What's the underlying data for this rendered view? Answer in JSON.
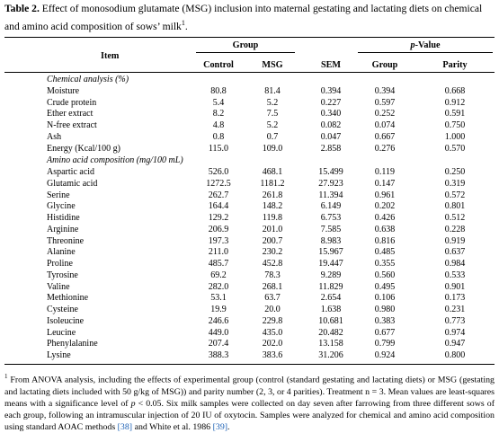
{
  "caption": {
    "label": "Table 2.",
    "text": " Effect of monosodium glutamate (MSG) inclusion into maternal gestating and lactating diets on chemical and amino acid composition of sows’ milk",
    "sup": "1",
    "end": "."
  },
  "header": {
    "item": "Item",
    "group": "Group",
    "pvalue": "p-Value",
    "control": "Control",
    "msg": "MSG",
    "sem": "SEM",
    "group_col": "Group",
    "parity": "Parity"
  },
  "sections": {
    "chemical": "Chemical analysis (%)",
    "amino": "Amino acid composition (mg/100 mL)"
  },
  "rows": [
    {
      "item": "Moisture",
      "control": "80.8",
      "msg": "81.4",
      "sem": "0.394",
      "group": "0.394",
      "parity": "0.668"
    },
    {
      "item": "Crude protein",
      "control": "5.4",
      "msg": "5.2",
      "sem": "0.227",
      "group": "0.597",
      "parity": "0.912"
    },
    {
      "item": "Ether extract",
      "control": "8.2",
      "msg": "7.5",
      "sem": "0.340",
      "group": "0.252",
      "parity": "0.591"
    },
    {
      "item": "N-free extract",
      "control": "4.8",
      "msg": "5.2",
      "sem": "0.082",
      "group": "0.074",
      "parity": "0.750"
    },
    {
      "item": "Ash",
      "control": "0.8",
      "msg": "0.7",
      "sem": "0.047",
      "group": "0.667",
      "parity": "1.000"
    },
    {
      "item": "Energy (Kcal/100 g)",
      "control": "115.0",
      "msg": "109.0",
      "sem": "2.858",
      "group": "0.276",
      "parity": "0.570"
    },
    {
      "item": "Aspartic acid",
      "control": "526.0",
      "msg": "468.1",
      "sem": "15.499",
      "group": "0.119",
      "parity": "0.250"
    },
    {
      "item": "Glutamic acid",
      "control": "1272.5",
      "msg": "1181.2",
      "sem": "27.923",
      "group": "0.147",
      "parity": "0.319"
    },
    {
      "item": "Serine",
      "control": "262.7",
      "msg": "261.8",
      "sem": "11.394",
      "group": "0.961",
      "parity": "0.572"
    },
    {
      "item": "Glycine",
      "control": "164.4",
      "msg": "148.2",
      "sem": "6.149",
      "group": "0.202",
      "parity": "0.801"
    },
    {
      "item": "Histidine",
      "control": "129.2",
      "msg": "119.8",
      "sem": "6.753",
      "group": "0.426",
      "parity": "0.512"
    },
    {
      "item": "Arginine",
      "control": "206.9",
      "msg": "201.0",
      "sem": "7.585",
      "group": "0.638",
      "parity": "0.228"
    },
    {
      "item": "Threonine",
      "control": "197.3",
      "msg": "200.7",
      "sem": "8.983",
      "group": "0.816",
      "parity": "0.919"
    },
    {
      "item": "Alanine",
      "control": "211.0",
      "msg": "230.2",
      "sem": "15.967",
      "group": "0.485",
      "parity": "0.637"
    },
    {
      "item": "Proline",
      "control": "485.7",
      "msg": "452.8",
      "sem": "19.447",
      "group": "0.355",
      "parity": "0.984"
    },
    {
      "item": "Tyrosine",
      "control": "69.2",
      "msg": "78.3",
      "sem": "9.289",
      "group": "0.560",
      "parity": "0.533"
    },
    {
      "item": "Valine",
      "control": "282.0",
      "msg": "268.1",
      "sem": "11.829",
      "group": "0.495",
      "parity": "0.901"
    },
    {
      "item": "Methionine",
      "control": "53.1",
      "msg": "63.7",
      "sem": "2.654",
      "group": "0.106",
      "parity": "0.173"
    },
    {
      "item": "Cysteine",
      "control": "19.9",
      "msg": "20.0",
      "sem": "1.638",
      "group": "0.980",
      "parity": "0.231"
    },
    {
      "item": "Isoleucine",
      "control": "246.6",
      "msg": "229.8",
      "sem": "10.681",
      "group": "0.383",
      "parity": "0.773"
    },
    {
      "item": "Leucine",
      "control": "449.0",
      "msg": "435.0",
      "sem": "20.482",
      "group": "0.677",
      "parity": "0.974"
    },
    {
      "item": "Phenylalanine",
      "control": "207.4",
      "msg": "202.0",
      "sem": "13.158",
      "group": "0.799",
      "parity": "0.947"
    },
    {
      "item": "Lysine",
      "control": "388.3",
      "msg": "383.6",
      "sem": "31.206",
      "group": "0.924",
      "parity": "0.800"
    }
  ],
  "footnote": {
    "sup": "1",
    "part1": " From ANOVA analysis, including the effects of experimental group (control (standard gestating and lactating diets) or MSG (gestating and lactating diets included with 50 g/kg of MSG)) and parity number (2, 3, or 4 parities). Treatment n = 3. Mean values are least-squares means with a significance level of ",
    "p": "p",
    "part2": " < 0.05. Six milk samples were collected on day seven after farrowing from three different sows of each group, following an intramuscular injection of 20 IU of oxytocin. Samples were analyzed for chemical and amino acid composition using standard AOAC methods ",
    "ref1": "[38]",
    "part3": " and White et al. 1986 ",
    "ref2": "[39]",
    "part4": "."
  },
  "colors": {
    "reference_link": "#1a5fb4"
  }
}
